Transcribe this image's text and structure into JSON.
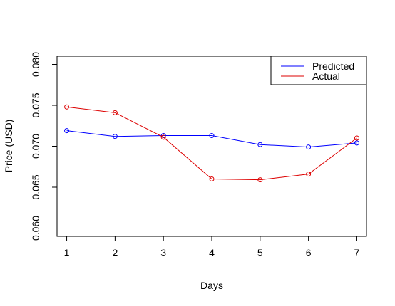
{
  "chart_data": {
    "type": "line",
    "title": "",
    "xlabel": "Days",
    "ylabel": "Price (USD)",
    "x": [
      1,
      2,
      3,
      4,
      5,
      6,
      7
    ],
    "xlim": [
      0.8,
      7.2
    ],
    "ylim": [
      0.059,
      0.081
    ],
    "x_ticks": [
      1,
      2,
      3,
      4,
      5,
      6,
      7
    ],
    "y_ticks": [
      0.06,
      0.065,
      0.07,
      0.075,
      0.08
    ],
    "y_tick_labels": [
      "0.060",
      "0.065",
      "0.070",
      "0.075",
      "0.080"
    ],
    "grid": false,
    "legend_position": "top-right",
    "series": [
      {
        "name": "Predicted",
        "color": "#0000ff",
        "values": [
          0.0719,
          0.0712,
          0.0713,
          0.0713,
          0.0702,
          0.0699,
          0.0704
        ]
      },
      {
        "name": "Actual",
        "color": "#dd0000",
        "values": [
          0.0748,
          0.0741,
          0.0711,
          0.066,
          0.0659,
          0.0666,
          0.071
        ]
      }
    ]
  }
}
